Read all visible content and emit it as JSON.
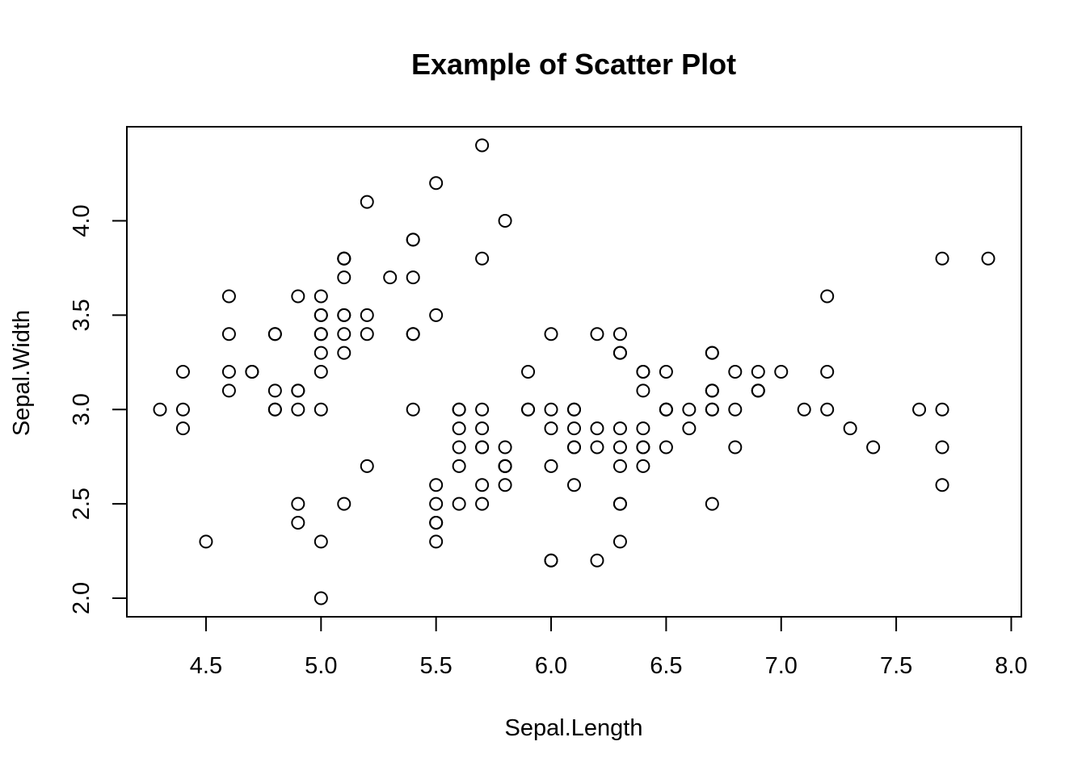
{
  "chart_data": {
    "type": "scatter",
    "title": "Example of Scatter Plot",
    "xlabel": "Sepal.Length",
    "ylabel": "Sepal.Width",
    "xlim": [
      4.3,
      7.9
    ],
    "ylim": [
      2.0,
      4.4
    ],
    "x_ticks": [
      4.5,
      5.0,
      5.5,
      6.0,
      6.5,
      7.0,
      7.5,
      8.0
    ],
    "x_tick_labels": [
      "4.5",
      "5.0",
      "5.5",
      "6.0",
      "6.5",
      "7.0",
      "7.5",
      "8.0"
    ],
    "y_ticks": [
      2.0,
      2.5,
      3.0,
      3.5,
      4.0
    ],
    "y_tick_labels": [
      "2.0",
      "2.5",
      "3.0",
      "3.5",
      "4.0"
    ],
    "grid": false,
    "legend": "none",
    "marker": "open-circle",
    "color": "#000000",
    "points": [
      [
        5.1,
        3.5
      ],
      [
        4.9,
        3.0
      ],
      [
        4.7,
        3.2
      ],
      [
        4.6,
        3.1
      ],
      [
        5.0,
        3.6
      ],
      [
        5.4,
        3.9
      ],
      [
        4.6,
        3.4
      ],
      [
        5.0,
        3.4
      ],
      [
        4.4,
        2.9
      ],
      [
        4.9,
        3.1
      ],
      [
        5.4,
        3.7
      ],
      [
        4.8,
        3.4
      ],
      [
        4.8,
        3.0
      ],
      [
        4.3,
        3.0
      ],
      [
        5.8,
        4.0
      ],
      [
        5.7,
        4.4
      ],
      [
        5.4,
        3.9
      ],
      [
        5.1,
        3.5
      ],
      [
        5.7,
        3.8
      ],
      [
        5.1,
        3.8
      ],
      [
        5.4,
        3.4
      ],
      [
        5.1,
        3.7
      ],
      [
        4.6,
        3.6
      ],
      [
        5.1,
        3.3
      ],
      [
        4.8,
        3.4
      ],
      [
        5.0,
        3.0
      ],
      [
        5.0,
        3.4
      ],
      [
        5.2,
        3.5
      ],
      [
        5.2,
        3.4
      ],
      [
        4.7,
        3.2
      ],
      [
        4.8,
        3.1
      ],
      [
        5.4,
        3.4
      ],
      [
        5.2,
        4.1
      ],
      [
        5.5,
        4.2
      ],
      [
        4.9,
        3.1
      ],
      [
        5.0,
        3.2
      ],
      [
        5.5,
        3.5
      ],
      [
        4.9,
        3.6
      ],
      [
        4.4,
        3.0
      ],
      [
        5.1,
        3.4
      ],
      [
        5.0,
        3.5
      ],
      [
        4.5,
        2.3
      ],
      [
        4.4,
        3.2
      ],
      [
        5.0,
        3.5
      ],
      [
        5.1,
        3.8
      ],
      [
        4.8,
        3.0
      ],
      [
        5.1,
        3.8
      ],
      [
        4.6,
        3.2
      ],
      [
        5.3,
        3.7
      ],
      [
        5.0,
        3.3
      ],
      [
        7.0,
        3.2
      ],
      [
        6.4,
        3.2
      ],
      [
        6.9,
        3.1
      ],
      [
        5.5,
        2.3
      ],
      [
        6.5,
        2.8
      ],
      [
        5.7,
        2.8
      ],
      [
        6.3,
        3.3
      ],
      [
        4.9,
        2.4
      ],
      [
        6.6,
        2.9
      ],
      [
        5.2,
        2.7
      ],
      [
        5.0,
        2.0
      ],
      [
        5.9,
        3.0
      ],
      [
        6.0,
        2.2
      ],
      [
        6.1,
        2.9
      ],
      [
        5.6,
        2.9
      ],
      [
        6.7,
        3.1
      ],
      [
        5.6,
        3.0
      ],
      [
        5.8,
        2.7
      ],
      [
        6.2,
        2.2
      ],
      [
        5.6,
        2.5
      ],
      [
        5.9,
        3.2
      ],
      [
        6.1,
        2.8
      ],
      [
        6.3,
        2.5
      ],
      [
        6.1,
        2.8
      ],
      [
        6.4,
        2.9
      ],
      [
        6.6,
        3.0
      ],
      [
        6.8,
        2.8
      ],
      [
        6.7,
        3.0
      ],
      [
        6.0,
        2.9
      ],
      [
        5.7,
        2.6
      ],
      [
        5.5,
        2.4
      ],
      [
        5.5,
        2.4
      ],
      [
        5.8,
        2.7
      ],
      [
        6.0,
        2.7
      ],
      [
        5.4,
        3.0
      ],
      [
        6.0,
        3.4
      ],
      [
        6.7,
        3.1
      ],
      [
        6.3,
        2.3
      ],
      [
        5.6,
        3.0
      ],
      [
        5.5,
        2.5
      ],
      [
        5.5,
        2.6
      ],
      [
        6.1,
        3.0
      ],
      [
        5.8,
        2.6
      ],
      [
        5.0,
        2.3
      ],
      [
        5.6,
        2.7
      ],
      [
        5.7,
        3.0
      ],
      [
        5.7,
        2.9
      ],
      [
        6.2,
        2.9
      ],
      [
        5.1,
        2.5
      ],
      [
        5.7,
        2.8
      ],
      [
        6.3,
        3.3
      ],
      [
        5.8,
        2.7
      ],
      [
        7.1,
        3.0
      ],
      [
        6.3,
        2.9
      ],
      [
        6.5,
        3.0
      ],
      [
        7.6,
        3.0
      ],
      [
        4.9,
        2.5
      ],
      [
        7.3,
        2.9
      ],
      [
        6.7,
        2.5
      ],
      [
        7.2,
        3.6
      ],
      [
        6.5,
        3.2
      ],
      [
        6.4,
        2.7
      ],
      [
        6.8,
        3.0
      ],
      [
        5.7,
        2.5
      ],
      [
        5.8,
        2.8
      ],
      [
        6.4,
        3.2
      ],
      [
        6.5,
        3.0
      ],
      [
        7.7,
        3.8
      ],
      [
        7.7,
        2.6
      ],
      [
        6.0,
        2.2
      ],
      [
        6.9,
        3.2
      ],
      [
        5.6,
        2.8
      ],
      [
        7.7,
        2.8
      ],
      [
        6.3,
        2.7
      ],
      [
        6.7,
        3.3
      ],
      [
        7.2,
        3.2
      ],
      [
        6.2,
        2.8
      ],
      [
        6.1,
        3.0
      ],
      [
        6.4,
        2.8
      ],
      [
        7.2,
        3.0
      ],
      [
        7.4,
        2.8
      ],
      [
        7.9,
        3.8
      ],
      [
        6.4,
        2.8
      ],
      [
        6.3,
        2.8
      ],
      [
        6.1,
        2.6
      ],
      [
        7.7,
        3.0
      ],
      [
        6.3,
        3.4
      ],
      [
        6.4,
        3.1
      ],
      [
        6.0,
        3.0
      ],
      [
        6.9,
        3.1
      ],
      [
        6.7,
        3.1
      ],
      [
        6.9,
        3.1
      ],
      [
        5.8,
        2.7
      ],
      [
        6.8,
        3.2
      ],
      [
        6.7,
        3.3
      ],
      [
        6.7,
        3.0
      ],
      [
        6.3,
        2.5
      ],
      [
        6.5,
        3.0
      ],
      [
        6.2,
        3.4
      ],
      [
        5.9,
        3.0
      ]
    ]
  }
}
